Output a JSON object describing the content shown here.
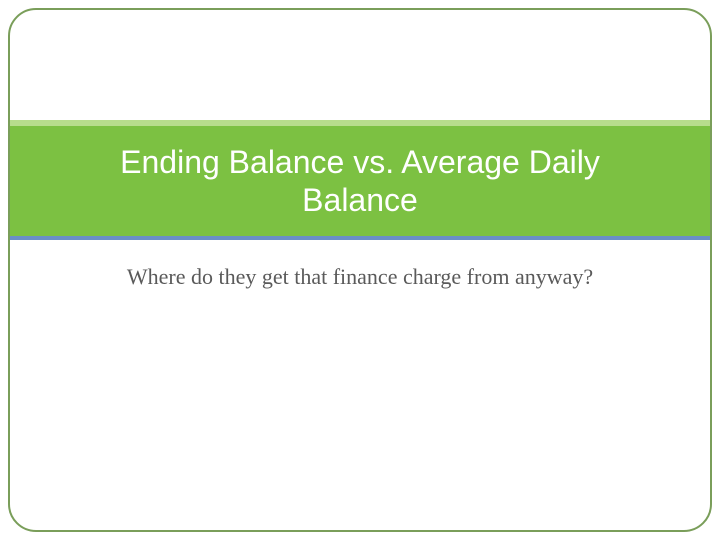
{
  "slide": {
    "title": "Ending Balance vs. Average Daily Balance",
    "subtitle": "Where do they get that finance charge from anyway?",
    "frame_border_color": "#7a9e5a",
    "frame_border_radius": 28,
    "title_band": {
      "background_color": "#7cc142",
      "top_border_color": "#b7dd8c",
      "bottom_border_color": "#6a8fc7",
      "text_color": "#ffffff",
      "font_size": 32,
      "font_family": "Segoe UI"
    },
    "subtitle_style": {
      "text_color": "#5a5a5a",
      "font_size": 22,
      "font_family": "Georgia"
    },
    "background_color": "#ffffff"
  }
}
